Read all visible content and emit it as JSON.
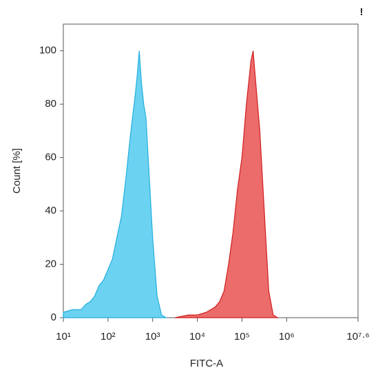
{
  "chart_data": {
    "type": "area",
    "xlabel": "FITC-A",
    "ylabel": "Count [%]",
    "annotation": "!",
    "xscale": "log",
    "xlim": [
      10,
      39810717
    ],
    "ylim": [
      0,
      110
    ],
    "xticks": [
      {
        "value": 10,
        "label": "10¹"
      },
      {
        "value": 100,
        "label": "10²"
      },
      {
        "value": 1000,
        "label": "10³"
      },
      {
        "value": 10000,
        "label": "10⁴"
      },
      {
        "value": 100000,
        "label": "10⁵"
      },
      {
        "value": 1000000,
        "label": "10⁶"
      },
      {
        "value": 39810717,
        "label": "10⁷·⁶"
      }
    ],
    "yticks": [
      0,
      20,
      40,
      60,
      80,
      100
    ],
    "series": [
      {
        "color": "#5ccdf0",
        "stroke": "#22aedb",
        "x": [
          10,
          16,
          25,
          32,
          40,
          50,
          63,
          79,
          100,
          126,
          158,
          200,
          251,
          316,
          398,
          447,
          501,
          562,
          631,
          708,
          794,
          1000,
          1259,
          1585,
          1995
        ],
        "values": [
          2,
          3,
          3,
          5,
          6,
          8,
          12,
          14,
          18,
          22,
          30,
          38,
          52,
          68,
          82,
          90,
          100,
          88,
          80,
          75,
          60,
          30,
          8,
          1,
          0
        ]
      },
      {
        "color": "#ea5b5b",
        "stroke": "#cf1f1f",
        "x": [
          3162,
          6310,
          10000,
          15849,
          25119,
          31623,
          39811,
          50119,
          63096,
          79433,
          100000,
          125893,
          158489,
          177828,
          199526,
          251189,
          316228,
          398107,
          501187,
          630957
        ],
        "values": [
          0,
          1,
          1,
          2,
          4,
          6,
          10,
          20,
          32,
          48,
          60,
          80,
          96,
          100,
          90,
          70,
          40,
          10,
          1,
          0
        ]
      }
    ]
  }
}
